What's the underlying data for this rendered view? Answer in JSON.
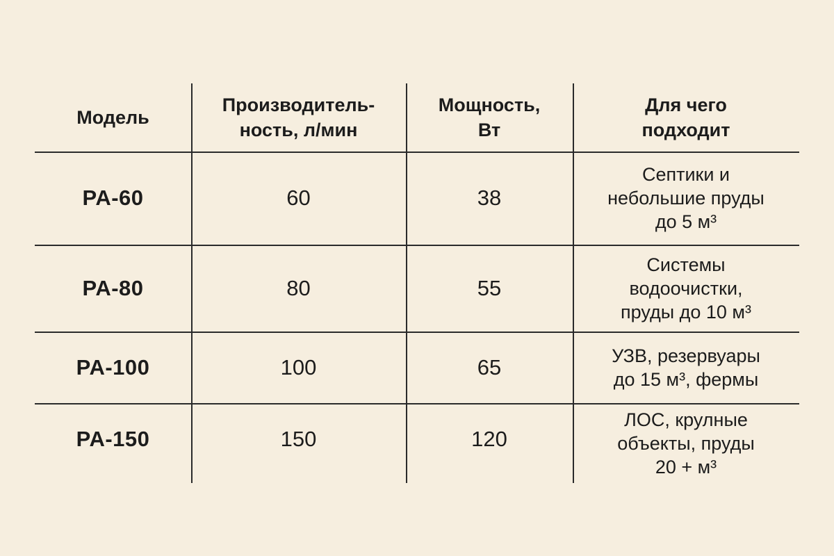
{
  "headers": {
    "model": "Модель",
    "performance": "Производитель-\nность, л/мин",
    "power": "Мощность,\nВт",
    "purpose": "Для чего\nподходит"
  },
  "rows": [
    {
      "model": "PA-60",
      "performance": "60",
      "power": "38",
      "purpose": "Септики и\nнебольшие пруды\nдо 5 м³"
    },
    {
      "model": "PA-80",
      "performance": "80",
      "power": "55",
      "purpose": "Системы\nводоочистки,\nпруды до 10 м³"
    },
    {
      "model": "PA-100",
      "performance": "100",
      "power": "65",
      "purpose": "УЗВ, резервуары\nдо 15 м³, фермы"
    },
    {
      "model": "PA-150",
      "performance": "150",
      "power": "120",
      "purpose": "ЛОС, крулные\nобъекты, пруды\n20 + м³"
    }
  ]
}
